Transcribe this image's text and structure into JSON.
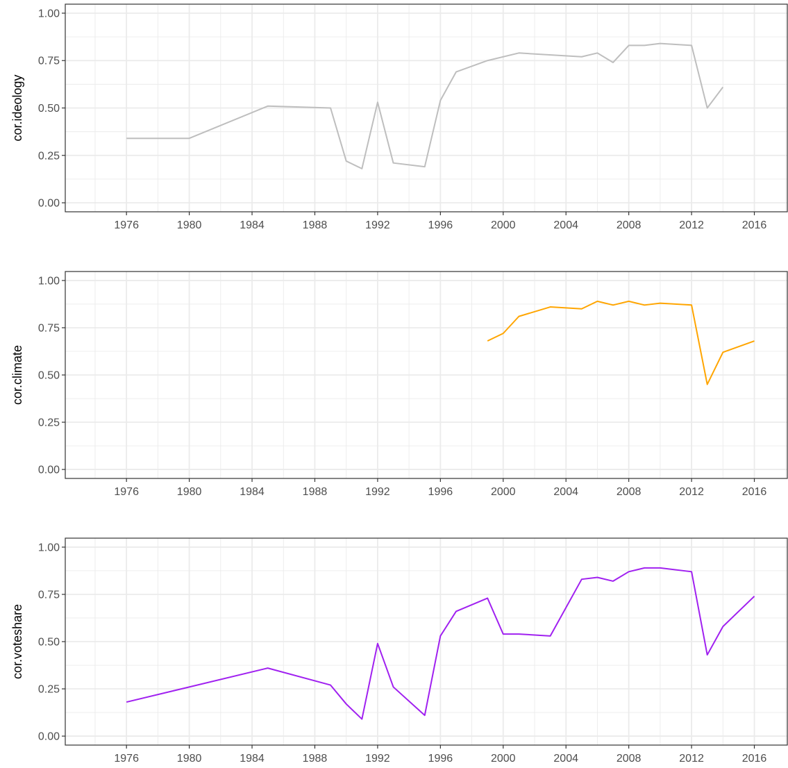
{
  "chart_data": [
    {
      "type": "line",
      "ylabel": "cor.ideology",
      "color": "#BEBEBE",
      "xlim": [
        1974.5,
        1967.0
      ],
      "xticks": [
        1976,
        1980,
        1984,
        1988,
        1992,
        1996,
        2000,
        2004,
        2008,
        2012,
        2016
      ],
      "ylim": [
        -0.04,
        1.05
      ],
      "yticks": [
        "0.00",
        "0.25",
        "0.50",
        "0.75",
        "1.00"
      ],
      "grid": true,
      "series": [
        {
          "x": [
            1976,
            1980,
            1985,
            1989,
            1990,
            1991,
            1992,
            1993,
            1995,
            1996,
            1997,
            1999,
            2001,
            2005,
            2006,
            2007,
            2008,
            2009,
            2010,
            2012,
            2013,
            2014
          ],
          "values": [
            0.34,
            0.34,
            0.51,
            0.5,
            0.22,
            0.18,
            0.53,
            0.21,
            0.19,
            0.54,
            0.69,
            0.75,
            0.79,
            0.77,
            0.79,
            0.74,
            0.83,
            0.83,
            0.84,
            0.83,
            0.5,
            0.61
          ]
        }
      ]
    },
    {
      "type": "line",
      "ylabel": "cor.climate",
      "color": "#FFA500",
      "xticks": [
        1976,
        1980,
        1984,
        1988,
        1992,
        1996,
        2000,
        2004,
        2008,
        2012,
        2016
      ],
      "ylim": [
        -0.04,
        1.05
      ],
      "yticks": [
        "0.00",
        "0.25",
        "0.50",
        "0.75",
        "1.00"
      ],
      "grid": true,
      "series": [
        {
          "x": [
            1999,
            2000,
            2001,
            2003,
            2005,
            2006,
            2007,
            2008,
            2009,
            2010,
            2012,
            2013,
            2014,
            2016
          ],
          "values": [
            0.68,
            0.72,
            0.81,
            0.86,
            0.85,
            0.89,
            0.87,
            0.89,
            0.87,
            0.88,
            0.87,
            0.45,
            0.62,
            0.68
          ]
        }
      ]
    },
    {
      "type": "line",
      "ylabel": "cor.voteshare",
      "color": "#A020F0",
      "xticks": [
        1976,
        1980,
        1984,
        1988,
        1992,
        1996,
        2000,
        2004,
        2008,
        2012,
        2016
      ],
      "ylim": [
        -0.04,
        1.05
      ],
      "yticks": [
        "0.00",
        "0.25",
        "0.50",
        "0.75",
        "1.00"
      ],
      "grid": true,
      "series": [
        {
          "x": [
            1976,
            1985,
            1989,
            1990,
            1991,
            1992,
            1993,
            1995,
            1996,
            1997,
            1999,
            2000,
            2001,
            2003,
            2005,
            2006,
            2007,
            2008,
            2009,
            2010,
            2012,
            2013,
            2014,
            2016
          ],
          "values": [
            0.18,
            0.36,
            0.27,
            0.17,
            0.09,
            0.49,
            0.26,
            0.11,
            0.53,
            0.66,
            0.73,
            0.54,
            0.54,
            0.53,
            0.83,
            0.84,
            0.82,
            0.87,
            0.89,
            0.89,
            0.87,
            0.43,
            0.58,
            0.74
          ]
        }
      ]
    }
  ]
}
